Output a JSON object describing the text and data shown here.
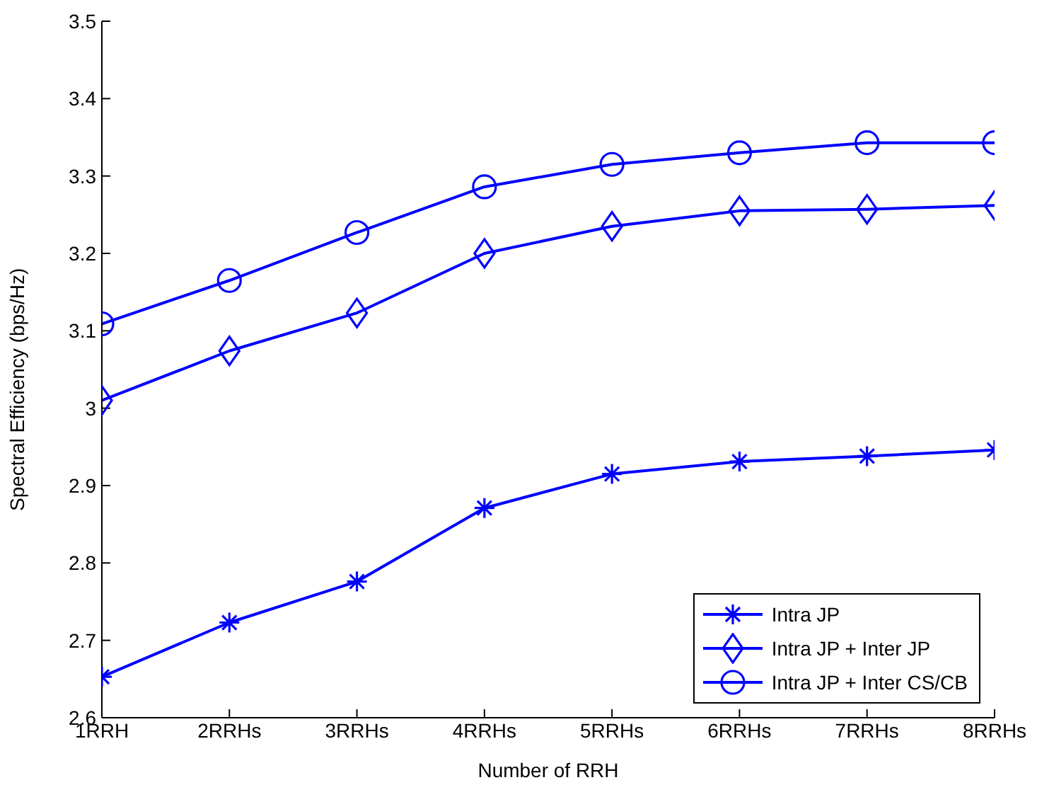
{
  "chart_data": {
    "type": "line",
    "xlabel": "Number of RRH",
    "ylabel": "Spectral Efficiency (bps/Hz)",
    "categories": [
      "1RRH",
      "2RRHs",
      "3RRHs",
      "4RRHs",
      "5RRHs",
      "6RRHs",
      "7RRHs",
      "8RRHs"
    ],
    "series": [
      {
        "name": "Intra JP",
        "color": "#0000ff",
        "marker": "cross",
        "values": [
          2.653,
          2.723,
          2.776,
          2.871,
          2.915,
          2.931,
          2.938,
          2.946
        ]
      },
      {
        "name": "Intra JP + Inter JP",
        "color": "#0000ff",
        "marker": "diamond",
        "values": [
          3.01,
          3.074,
          3.123,
          3.2,
          3.235,
          3.255,
          3.257,
          3.262
        ]
      },
      {
        "name": "Intra JP + Inter CS/CB",
        "color": "#0000ff",
        "marker": "circle",
        "values": [
          3.109,
          3.165,
          3.227,
          3.286,
          3.315,
          3.33,
          3.343,
          3.343
        ]
      }
    ],
    "ylim": [
      2.6,
      3.5
    ],
    "yticks": [
      2.6,
      2.7,
      2.8,
      2.9,
      3,
      3.1,
      3.2,
      3.3,
      3.4,
      3.5
    ],
    "grid": false,
    "legend": "bottom right",
    "line_style": "solid"
  }
}
